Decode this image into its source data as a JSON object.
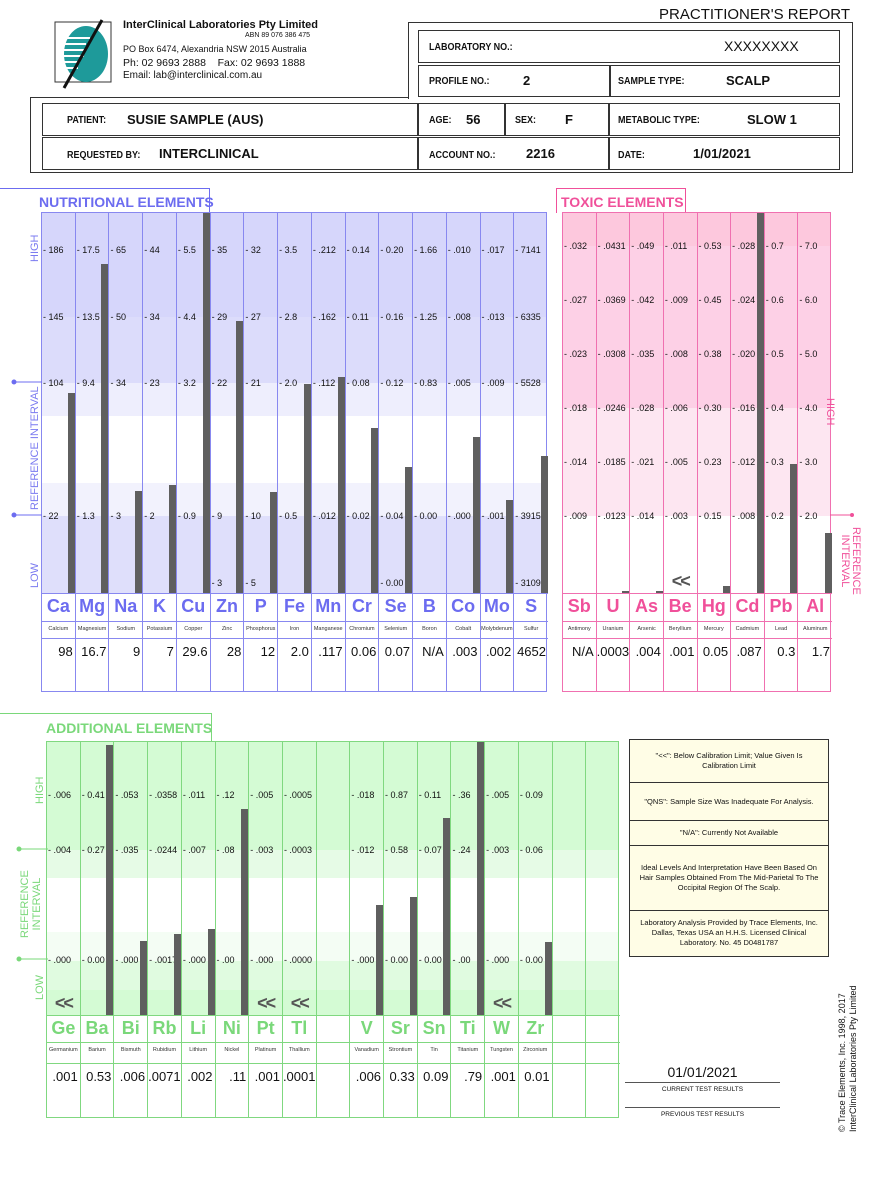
{
  "header": {
    "report_title": "PRACTITIONER'S REPORT",
    "company": "InterClinical Laboratories Pty Limited",
    "abn": "ABN 89 076 386 475",
    "address": "PO Box 6474, Alexandria NSW 2015 Australia",
    "phone": "Ph: 02 9693 2888    Fax: 02 9693 1888",
    "email": "Email: lab@interclinical.com.au"
  },
  "info": {
    "lab_no_label": "LABORATORY NO.:",
    "lab_no": "XXXXXXXX",
    "profile_label": "PROFILE NO.:",
    "profile": "2",
    "sample_type_label": "SAMPLE TYPE:",
    "sample_type": "SCALP",
    "patient_label": "PATIENT:",
    "patient": "SUSIE SAMPLE (AUS)",
    "age_label": "AGE:",
    "age": "56",
    "sex_label": "SEX:",
    "sex": "F",
    "metabolic_label": "METABOLIC TYPE:",
    "metabolic": "SLOW 1",
    "requested_label": "REQUESTED BY:",
    "requested": "INTERCLINICAL",
    "account_label": "ACCOUNT NO.:",
    "account": "2216",
    "date_label": "DATE:",
    "date": "1/01/2021"
  },
  "labels": {
    "high": "HIGH",
    "low": "LOW",
    "reference": "REFERENCE INTERVAL",
    "reference_l1": "REFERENCE",
    "reference_l2": "INTERVAL",
    "below_limit": "<<"
  },
  "nutritional": {
    "title": "NUTRITIONAL  ELEMENTS",
    "color": "#6c6cf0",
    "elements": [
      {
        "sym": "Ca",
        "name": "Calcium",
        "value": "98",
        "ticks": [
          "186",
          "145",
          "104",
          "22",
          ""
        ],
        "level": 0.526
      },
      {
        "sym": "Mg",
        "name": "Magnesium",
        "value": "16.7",
        "ticks": [
          "17.5",
          "13.5",
          "9.4",
          "1.3",
          ""
        ],
        "level": 0.866
      },
      {
        "sym": "Na",
        "name": "Sodium",
        "value": "9",
        "ticks": [
          "65",
          "50",
          "34",
          "3",
          ""
        ],
        "level": 0.268
      },
      {
        "sym": "K",
        "name": "Potassium",
        "value": "7",
        "ticks": [
          "44",
          "34",
          "23",
          "2",
          ""
        ],
        "level": 0.284
      },
      {
        "sym": "Cu",
        "name": "Copper",
        "value": "29.6",
        "ticks": [
          "5.5",
          "4.4",
          "3.2",
          "0.9",
          ""
        ],
        "level": 1.0
      },
      {
        "sym": "Zn",
        "name": "Zinc",
        "value": "28",
        "ticks": [
          "35",
          "29",
          "22",
          "9",
          "3"
        ],
        "level": 0.716
      },
      {
        "sym": "P",
        "name": "Phosphorus",
        "value": "12",
        "ticks": [
          "32",
          "27",
          "21",
          "10",
          "5"
        ],
        "level": 0.266
      },
      {
        "sym": "Fe",
        "name": "Iron",
        "value": "2.0",
        "ticks": [
          "3.5",
          "2.8",
          "2.0",
          "0.5",
          ""
        ],
        "level": 0.55
      },
      {
        "sym": "Mn",
        "name": "Manganese",
        "value": ".117",
        "ticks": [
          ".212",
          ".162",
          ".112",
          ".012",
          ""
        ],
        "level": 0.568
      },
      {
        "sym": "Cr",
        "name": "Chromium",
        "value": "0.06",
        "ticks": [
          "0.14",
          "0.11",
          "0.08",
          "0.02",
          ""
        ],
        "level": 0.434
      },
      {
        "sym": "Se",
        "name": "Selenium",
        "value": "0.07",
        "ticks": [
          "0.20",
          "0.16",
          "0.12",
          "0.04",
          "0.00"
        ],
        "level": 0.332
      },
      {
        "sym": "B",
        "name": "Boron",
        "value": "N/A",
        "ticks": [
          "1.66",
          "1.25",
          "0.83",
          "0.00",
          ""
        ],
        "level": 0
      },
      {
        "sym": "Co",
        "name": "Cobalt",
        "value": ".003",
        "ticks": [
          ".010",
          ".008",
          ".005",
          ".000",
          ""
        ],
        "level": 0.41
      },
      {
        "sym": "Mo",
        "name": "Molybdenum",
        "value": ".002",
        "ticks": [
          ".017",
          ".013",
          ".009",
          ".001",
          ""
        ],
        "level": 0.245
      },
      {
        "sym": "S",
        "name": "Sulfur",
        "value": "4652",
        "ticks": [
          "7141",
          "6335",
          "5528",
          "3915",
          "3109"
        ],
        "level": 0.36
      }
    ]
  },
  "toxic": {
    "title": "TOXIC  ELEMENTS",
    "color": "#f0509a",
    "elements": [
      {
        "sym": "Sb",
        "name": "Antimony",
        "value": "N/A",
        "ticks": [
          ".032",
          ".027",
          ".023",
          ".018",
          ".014",
          ".009"
        ],
        "level": 0
      },
      {
        "sym": "U",
        "name": "Uranium",
        "value": ".0003",
        "ticks": [
          ".0431",
          ".0369",
          ".0308",
          ".0246",
          ".0185",
          ".0123"
        ],
        "level": 0.006
      },
      {
        "sym": "As",
        "name": "Arsenic",
        "value": ".004",
        "ticks": [
          ".049",
          ".042",
          ".035",
          ".028",
          ".021",
          ".014"
        ],
        "level": 0.006
      },
      {
        "sym": "Be",
        "name": "Beryllium",
        "value": ".001",
        "ticks": [
          ".011",
          ".009",
          ".008",
          ".006",
          ".005",
          ".003"
        ],
        "level": 0,
        "below": true
      },
      {
        "sym": "Hg",
        "name": "Mercury",
        "value": "0.05",
        "ticks": [
          "0.53",
          "0.45",
          "0.38",
          "0.30",
          "0.23",
          "0.15"
        ],
        "level": 0.018
      },
      {
        "sym": "Cd",
        "name": "Cadmium",
        "value": ".087",
        "ticks": [
          ".028",
          ".024",
          ".020",
          ".016",
          ".012",
          ".008"
        ],
        "level": 1.0
      },
      {
        "sym": "Pb",
        "name": "Lead",
        "value": "0.3",
        "ticks": [
          "0.7",
          "0.6",
          "0.5",
          "0.4",
          "0.3",
          "0.2"
        ],
        "level": 0.34
      },
      {
        "sym": "Al",
        "name": "Aluminum",
        "value": "1.7",
        "ticks": [
          "7.0",
          "6.0",
          "5.0",
          "4.0",
          "3.0",
          "2.0"
        ],
        "level": 0.158
      }
    ]
  },
  "additional": {
    "title": "ADDITIONAL  ELEMENTS",
    "color": "#7ad87a",
    "elements": [
      {
        "sym": "Ge",
        "name": "Germanium",
        "value": ".001",
        "ticks": [
          ".006",
          ".004",
          ".000"
        ],
        "level": 0,
        "below": true
      },
      {
        "sym": "Ba",
        "name": "Barium",
        "value": "0.53",
        "ticks": [
          "0.41",
          "0.27",
          "0.00"
        ],
        "level": 0.99
      },
      {
        "sym": "Bi",
        "name": "Bismuth",
        "value": ".006",
        "ticks": [
          ".053",
          ".035",
          ".000"
        ],
        "level": 0.27
      },
      {
        "sym": "Rb",
        "name": "Rubidium",
        "value": ".0071",
        "ticks": [
          ".0358",
          ".0244",
          ".0017"
        ],
        "level": 0.297
      },
      {
        "sym": "Li",
        "name": "Lithium",
        "value": ".002",
        "ticks": [
          ".011",
          ".007",
          ".000"
        ],
        "level": 0.315
      },
      {
        "sym": "Ni",
        "name": "Nickel",
        "value": ".11",
        "ticks": [
          ".12",
          ".08",
          ".00"
        ],
        "level": 0.755
      },
      {
        "sym": "Pt",
        "name": "Platinum",
        "value": ".001",
        "ticks": [
          ".005",
          ".003",
          ".000"
        ],
        "level": 0,
        "below": true
      },
      {
        "sym": "Tl",
        "name": "Thallium",
        "value": ".0001",
        "ticks": [
          ".0005",
          ".0003",
          ".0000"
        ],
        "level": 0,
        "below": true
      },
      {},
      {
        "sym": "V",
        "name": "Vanadium",
        "value": ".006",
        "ticks": [
          ".018",
          ".012",
          ".000"
        ],
        "level": 0.403
      },
      {
        "sym": "Sr",
        "name": "Strontium",
        "value": "0.33",
        "ticks": [
          "0.87",
          "0.58",
          "0.00"
        ],
        "level": 0.432
      },
      {
        "sym": "Sn",
        "name": "Tin",
        "value": "0.09",
        "ticks": [
          "0.11",
          "0.07",
          "0.00"
        ],
        "level": 0.72
      },
      {
        "sym": "Ti",
        "name": "Titanium",
        "value": ".79",
        "ticks": [
          ".36",
          ".24",
          ".00"
        ],
        "level": 1.0
      },
      {
        "sym": "W",
        "name": "Tungsten",
        "value": ".001",
        "ticks": [
          ".005",
          ".003",
          ".000"
        ],
        "level": 0,
        "below": true
      },
      {
        "sym": "Zr",
        "name": "Zirconium",
        "value": "0.01",
        "ticks": [
          "0.09",
          "0.06",
          "0.00"
        ],
        "level": 0.267
      },
      {},
      {}
    ]
  },
  "notes": [
    "\"<<\": Below Calibration Limit; Value Given Is Calibration Limit",
    "\"QNS\": Sample Size Was Inadequate For Analysis.",
    "\"N/A\": Currently Not Available",
    "Ideal Levels And Interpretation Have Been Based On Hair Samples Obtained From The Mid-Parietal To The Occipital Region Of The Scalp.",
    "Laboratory Analysis Provided by Trace Elements, Inc. Dallas, Texas USA an H.H.S. Licensed Clinical Laboratory. No. 45 D0481787"
  ],
  "results": {
    "current_date": "01/01/2021",
    "current_label": "CURRENT TEST RESULTS",
    "previous_label": "PREVIOUS TEST RESULTS"
  },
  "copyright": {
    "line1": "© Trace Elements, Inc. 1998, 2017",
    "line2": "InterClinical Laboratories Pty Limited"
  }
}
